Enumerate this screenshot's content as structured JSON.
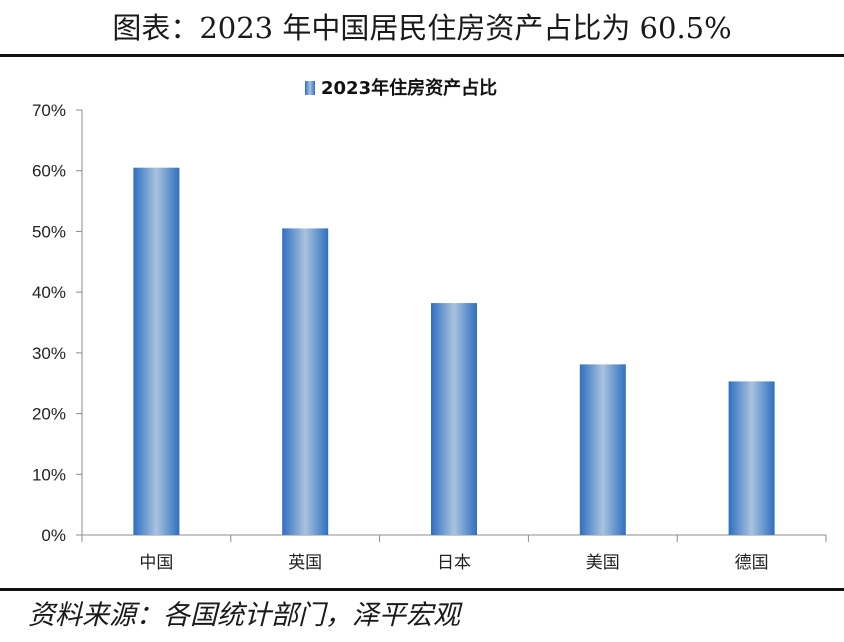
{
  "page": {
    "title": "图表：2023 年中国居民住房资产占比为 60.5%",
    "source": "资料来源：各国统计部门，泽平宏观"
  },
  "chart_data": {
    "type": "bar",
    "title": "",
    "xlabel": "",
    "ylabel": "",
    "categories": [
      "中国",
      "英国",
      "日本",
      "美国",
      "德国"
    ],
    "series": [
      {
        "name": "2023年住房资产占比",
        "values": [
          60.5,
          50.5,
          38.2,
          28.1,
          25.3
        ]
      }
    ],
    "ylim": [
      0,
      70
    ],
    "yticks": [
      0,
      10,
      20,
      30,
      40,
      50,
      60,
      70
    ],
    "ytick_labels": [
      "0%",
      "10%",
      "20%",
      "30%",
      "40%",
      "50%",
      "60%",
      "70%"
    ],
    "grid": false,
    "legend": "top-center",
    "colors": {
      "bar_edge": "#2f6fc0",
      "bar_center": "#a9c3df",
      "axis": "#8c8c8c"
    }
  }
}
